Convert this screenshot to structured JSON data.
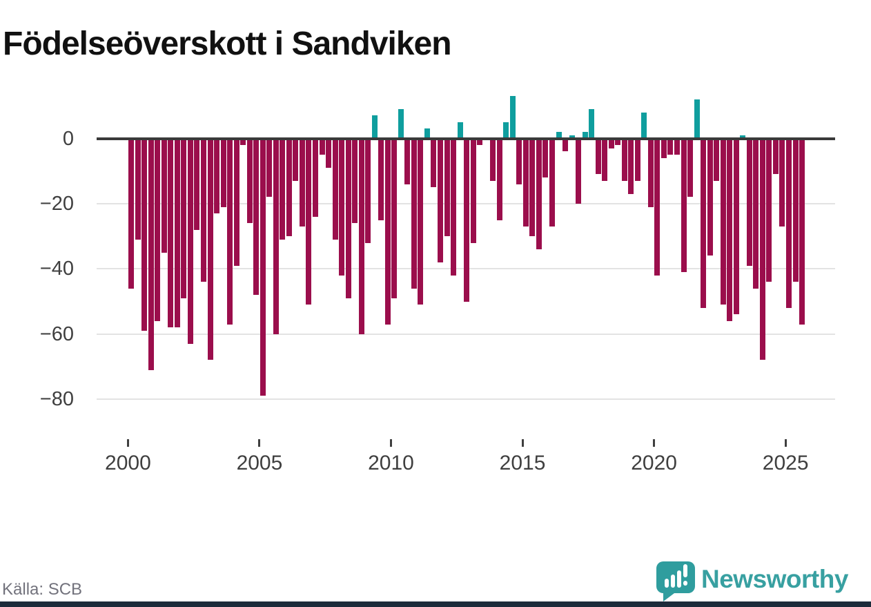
{
  "page": {
    "title": "Födelseöverskott i Sandviken"
  },
  "footer": {
    "source": "Källa: SCB",
    "brand": "Newsworthy"
  },
  "colors": {
    "negative_bar": "#9b0e4c",
    "positive_bar": "#0f9e9e",
    "zero_line": "#3a3a3a",
    "gridline": "#e3e3e3",
    "axis_text": "#3f3f3f",
    "brand_teal": "#38a0a1",
    "source_text": "#72727c",
    "footer_strip": "#1c2b3a"
  },
  "chart_data": {
    "type": "bar",
    "title": "Födelseöverskott i Sandviken",
    "xlabel": "",
    "ylabel": "",
    "x_tick_labels": [
      "2000",
      "2005",
      "2010",
      "2015",
      "2020",
      "2025"
    ],
    "y_ticks": [
      {
        "value": 0,
        "label": "0"
      },
      {
        "value": -20,
        "label": "−20"
      },
      {
        "value": -40,
        "label": "−40"
      },
      {
        "value": -60,
        "label": "−60"
      },
      {
        "value": -80,
        "label": "−80"
      }
    ],
    "ylim": [
      -84,
      15
    ],
    "grid": "horizontal",
    "legend_position": "none",
    "frequency": "quarterly",
    "series_by_year": [
      {
        "year": 2000,
        "quarters": [
          -46,
          -31,
          -59,
          -71
        ]
      },
      {
        "year": 2001,
        "quarters": [
          -56,
          -35,
          -58,
          -58
        ]
      },
      {
        "year": 2002,
        "quarters": [
          -49,
          -63,
          -28,
          -44
        ]
      },
      {
        "year": 2003,
        "quarters": [
          -68,
          -23,
          -21,
          -57
        ]
      },
      {
        "year": 2004,
        "quarters": [
          -39,
          -2,
          -26,
          -48
        ]
      },
      {
        "year": 2005,
        "quarters": [
          -79,
          -18,
          -60,
          -31
        ]
      },
      {
        "year": 2006,
        "quarters": [
          -30,
          -13,
          -27,
          -51
        ]
      },
      {
        "year": 2007,
        "quarters": [
          -24,
          -5,
          -9,
          -31
        ]
      },
      {
        "year": 2008,
        "quarters": [
          -42,
          -49,
          -26,
          -60
        ]
      },
      {
        "year": 2009,
        "quarters": [
          -32,
          7,
          -25,
          -57
        ]
      },
      {
        "year": 2010,
        "quarters": [
          -49,
          9,
          -14,
          -46
        ]
      },
      {
        "year": 2011,
        "quarters": [
          -51,
          3,
          -15,
          -38
        ]
      },
      {
        "year": 2012,
        "quarters": [
          -30,
          -42,
          5,
          -50
        ]
      },
      {
        "year": 2013,
        "quarters": [
          -32,
          -2,
          0,
          -13
        ]
      },
      {
        "year": 2014,
        "quarters": [
          -25,
          5,
          13,
          -14
        ]
      },
      {
        "year": 2015,
        "quarters": [
          -27,
          -30,
          -34,
          -12
        ]
      },
      {
        "year": 2016,
        "quarters": [
          -27,
          2,
          -4,
          1
        ]
      },
      {
        "year": 2017,
        "quarters": [
          -20,
          2,
          9,
          -11
        ]
      },
      {
        "year": 2018,
        "quarters": [
          -13,
          -3,
          -2,
          -13
        ]
      },
      {
        "year": 2019,
        "quarters": [
          -17,
          -13,
          8,
          -21
        ]
      },
      {
        "year": 2020,
        "quarters": [
          -42,
          -6,
          -5,
          -5
        ]
      },
      {
        "year": 2021,
        "quarters": [
          -41,
          -18,
          12,
          -52
        ]
      },
      {
        "year": 2022,
        "quarters": [
          -36,
          -13,
          -51,
          -56
        ]
      },
      {
        "year": 2023,
        "quarters": [
          -54,
          1,
          -39,
          -46
        ]
      },
      {
        "year": 2024,
        "quarters": [
          -68,
          -44,
          -11,
          -27
        ]
      },
      {
        "year": 2025,
        "quarters": [
          -52,
          -44,
          -57
        ]
      }
    ]
  }
}
